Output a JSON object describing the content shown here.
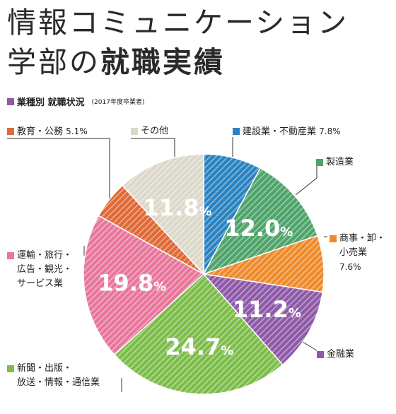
{
  "title": {
    "line1": "情報コミュニケーション",
    "line2_prefix": "学部の",
    "line2_bold": "就職実績"
  },
  "subtitle": {
    "text": "業種別 就職状況",
    "note": "(2017年度卒業者)",
    "color": "#8e5aa8"
  },
  "chart_data": {
    "type": "pie",
    "title": "業種別 就職状況",
    "start_angle_deg": 0,
    "direction": "clockwise",
    "slices": [
      {
        "label": "建設業・不動産業",
        "value": 7.8,
        "color": "#2a83c1",
        "value_text": "7.8%"
      },
      {
        "label": "製造業",
        "value": 12.0,
        "color": "#4ea46a",
        "value_text": "12.0%"
      },
      {
        "label": "商事・卸・小売業",
        "value": 7.6,
        "color": "#ef8a2a",
        "value_text": "7.6%"
      },
      {
        "label": "金融業",
        "value": 11.2,
        "color": "#8e5aa8",
        "value_text": "11.2%"
      },
      {
        "label": "新聞・出版・放送・情報・通信業",
        "value": 24.7,
        "color": "#7cbd4a",
        "value_text": "24.7%"
      },
      {
        "label": "運輸・旅行・広告・観光・サービス業",
        "value": 19.8,
        "color": "#e8769a",
        "value_text": "19.8%"
      },
      {
        "label": "教育・公務",
        "value": 5.1,
        "color": "#e06a36",
        "value_text": "5.1%"
      },
      {
        "label": "その他",
        "value": 11.8,
        "color": "#dcd8ca",
        "value_text": "11.8%"
      }
    ]
  },
  "labels": {
    "construction": {
      "lines": [
        "建設業・不動産業"
      ],
      "value": "7.8%"
    },
    "manufacturing": {
      "lines": [
        "製造業"
      ],
      "value": ""
    },
    "trade": {
      "lines": [
        "商事・卸・",
        "小売業"
      ],
      "value": "7.6%"
    },
    "finance": {
      "lines": [
        "金融業"
      ],
      "value": ""
    },
    "media": {
      "lines": [
        "新聞・出版・",
        "放送・情報・通信業"
      ],
      "value": ""
    },
    "transport": {
      "lines": [
        "運輸・旅行・",
        "広告・観光・",
        "サービス業"
      ],
      "value": ""
    },
    "education": {
      "lines": [
        "教育・公務"
      ],
      "value": "5.1%"
    },
    "other": {
      "lines": [
        "その他"
      ],
      "value": ""
    }
  }
}
